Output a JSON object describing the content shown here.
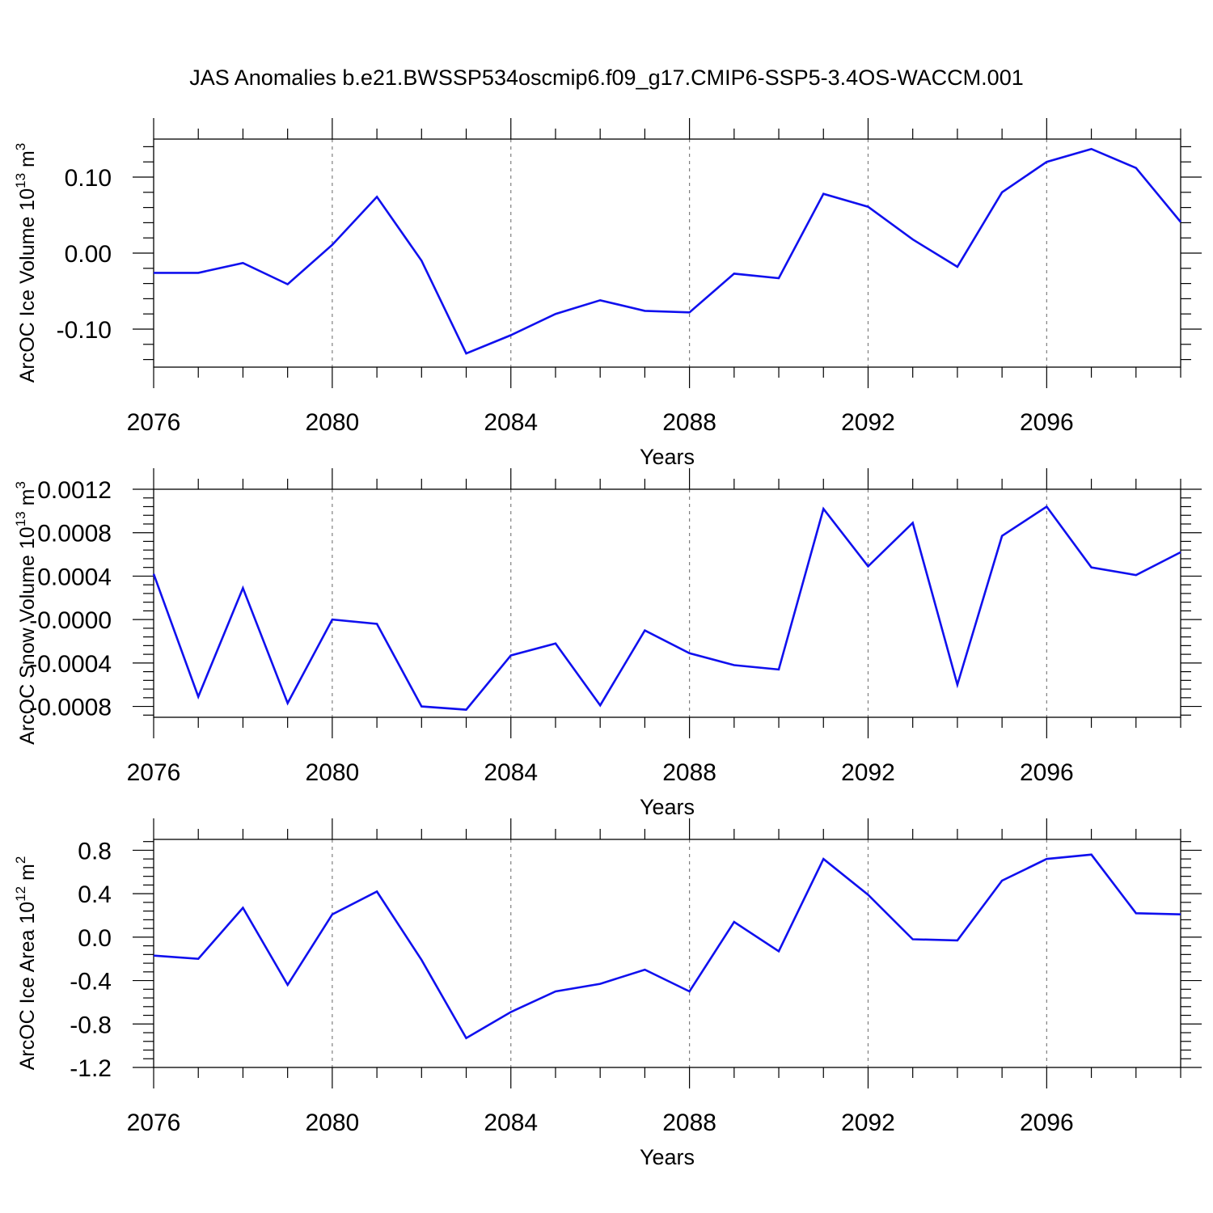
{
  "title": "JAS Anomalies b.e21.BWSSP534oscmip6.f09_g17.CMIP6-SSP5-3.4OS-WACCM.001",
  "colors": {
    "series": "#1010ee",
    "grid": "#7f7f7f",
    "axes": "#000000"
  },
  "chart_data": [
    {
      "type": "line",
      "xlabel": "Years",
      "ylabel": {
        "prefix": "ArcOC Ice Volume 10",
        "exponent": "13",
        "unit": " m",
        "unit_exponent": "3"
      },
      "xlim": [
        2076,
        2099
      ],
      "ylim": [
        -0.15,
        0.15
      ],
      "xticks": [
        2076,
        2080,
        2084,
        2088,
        2092,
        2096
      ],
      "xtick_labels": [
        "2076",
        "2080",
        "2084",
        "2088",
        "2092",
        "2096"
      ],
      "yticks": [
        -0.1,
        0.0,
        0.1
      ],
      "ytick_labels": [
        "-0.10",
        "0.00",
        "0.10"
      ],
      "grid": "vertical dashed at major x ticks",
      "x": [
        2076,
        2077,
        2078,
        2079,
        2080,
        2081,
        2082,
        2083,
        2084,
        2085,
        2086,
        2087,
        2088,
        2089,
        2090,
        2091,
        2092,
        2093,
        2094,
        2095,
        2096,
        2097,
        2098,
        2099
      ],
      "values": [
        -0.026,
        -0.026,
        -0.013,
        -0.041,
        0.011,
        0.074,
        -0.01,
        -0.132,
        -0.108,
        -0.08,
        -0.062,
        -0.076,
        -0.078,
        -0.027,
        -0.033,
        0.078,
        0.061,
        0.018,
        -0.018,
        0.08,
        0.12,
        0.137,
        0.112,
        0.041
      ]
    },
    {
      "type": "line",
      "xlabel": "Years",
      "ylabel": {
        "prefix": "ArcOC Snow Volume 10",
        "exponent": "13",
        "unit": " m",
        "unit_exponent": "3"
      },
      "xlim": [
        2076,
        2099
      ],
      "ylim": [
        -0.0009,
        0.0012
      ],
      "xticks": [
        2076,
        2080,
        2084,
        2088,
        2092,
        2096
      ],
      "xtick_labels": [
        "2076",
        "2080",
        "2084",
        "2088",
        "2092",
        "2096"
      ],
      "yticks": [
        -0.0008,
        -0.0004,
        0.0,
        0.0004,
        0.0008,
        0.0012
      ],
      "ytick_labels": [
        "-0.0008",
        "-0.0004",
        "-0.0000",
        "0.0004",
        "0.0008",
        "0.0012"
      ],
      "grid": "vertical dashed at major x ticks",
      "x": [
        2076,
        2077,
        2078,
        2079,
        2080,
        2081,
        2082,
        2083,
        2084,
        2085,
        2086,
        2087,
        2088,
        2089,
        2090,
        2091,
        2092,
        2093,
        2094,
        2095,
        2096,
        2097,
        2098,
        2099
      ],
      "values": [
        0.00042,
        -0.00071,
        0.00029,
        -0.00077,
        0.0,
        -4e-05,
        -0.0008,
        -0.00083,
        -0.00033,
        -0.00022,
        -0.00079,
        -0.0001,
        -0.00031,
        -0.00042,
        -0.00046,
        0.00102,
        0.00049,
        0.00089,
        -0.0006,
        0.00077,
        0.00104,
        0.00048,
        0.00041,
        0.00062
      ]
    },
    {
      "type": "line",
      "xlabel": "Years",
      "ylabel": {
        "prefix": "ArcOC Ice Area 10",
        "exponent": "12",
        "unit": " m",
        "unit_exponent": "2"
      },
      "xlim": [
        2076,
        2099
      ],
      "ylim": [
        -1.2,
        0.9
      ],
      "xticks": [
        2076,
        2080,
        2084,
        2088,
        2092,
        2096
      ],
      "xtick_labels": [
        "2076",
        "2080",
        "2084",
        "2088",
        "2092",
        "2096"
      ],
      "yticks": [
        -1.2,
        -0.8,
        -0.4,
        0.0,
        0.4,
        0.8
      ],
      "ytick_labels": [
        "-1.2",
        "-0.8",
        "-0.4",
        "0.0",
        "0.4",
        "0.8"
      ],
      "grid": "vertical dashed at major x ticks",
      "x": [
        2076,
        2077,
        2078,
        2079,
        2080,
        2081,
        2082,
        2083,
        2084,
        2085,
        2086,
        2087,
        2088,
        2089,
        2090,
        2091,
        2092,
        2093,
        2094,
        2095,
        2096,
        2097,
        2098,
        2099
      ],
      "values": [
        -0.17,
        -0.2,
        0.27,
        -0.44,
        0.21,
        0.42,
        -0.21,
        -0.93,
        -0.69,
        -0.5,
        -0.43,
        -0.3,
        -0.5,
        0.14,
        -0.13,
        0.72,
        0.39,
        -0.02,
        -0.03,
        0.52,
        0.72,
        0.76,
        0.22,
        0.21
      ]
    }
  ]
}
